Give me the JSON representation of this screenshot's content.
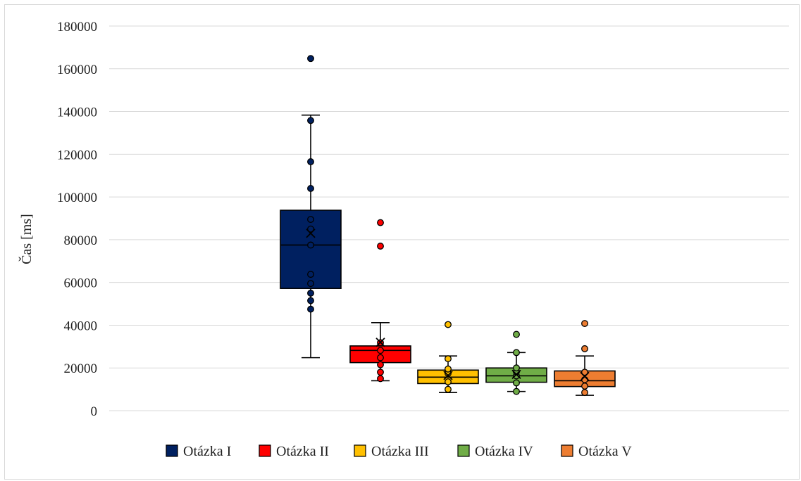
{
  "chart_data": {
    "type": "box",
    "title": "",
    "xlabel": "",
    "ylabel": "Čas [ms]",
    "ylim": [
      0,
      180000
    ],
    "yticks": [
      "0",
      "20000",
      "40000",
      "60000",
      "80000",
      "100000",
      "120000",
      "140000",
      "160000",
      "180000"
    ],
    "grid": true,
    "legend_position": "bottom",
    "series": [
      {
        "name": "Otázka I",
        "color": "#002060",
        "min": 24800,
        "q1": 57200,
        "median": 77500,
        "q3": 93800,
        "max": 138300,
        "mean": 83000,
        "points": [
          47500,
          51500,
          55000,
          59500,
          63800,
          77500,
          85000,
          89500,
          104000,
          116500,
          135800,
          164800
        ]
      },
      {
        "name": "Otázka II",
        "color": "#ff0000",
        "min": 14000,
        "q1": 22500,
        "median": 28200,
        "q3": 30300,
        "max": 41200,
        "mean": 32000,
        "points": [
          15000,
          18000,
          21500,
          24800,
          28200,
          31800,
          77000,
          88000
        ]
      },
      {
        "name": "Otázka III",
        "color": "#ffc000",
        "min": 8500,
        "q1": 12700,
        "median": 15700,
        "q3": 19000,
        "max": 25600,
        "mean": 16500,
        "points": [
          10000,
          13500,
          17500,
          19500,
          24300,
          40300
        ]
      },
      {
        "name": "Otázka IV",
        "color": "#70ad47",
        "min": 9000,
        "q1": 13300,
        "median": 16300,
        "q3": 20000,
        "max": 27200,
        "mean": 17000,
        "points": [
          9000,
          13000,
          16300,
          18200,
          20000,
          27200,
          35700
        ]
      },
      {
        "name": "Otázka V",
        "color": "#ed7d31",
        "min": 7200,
        "q1": 11300,
        "median": 14000,
        "q3": 18600,
        "max": 25600,
        "mean": 16000,
        "points": [
          8500,
          11500,
          14500,
          18000,
          29000,
          40800
        ]
      }
    ]
  }
}
